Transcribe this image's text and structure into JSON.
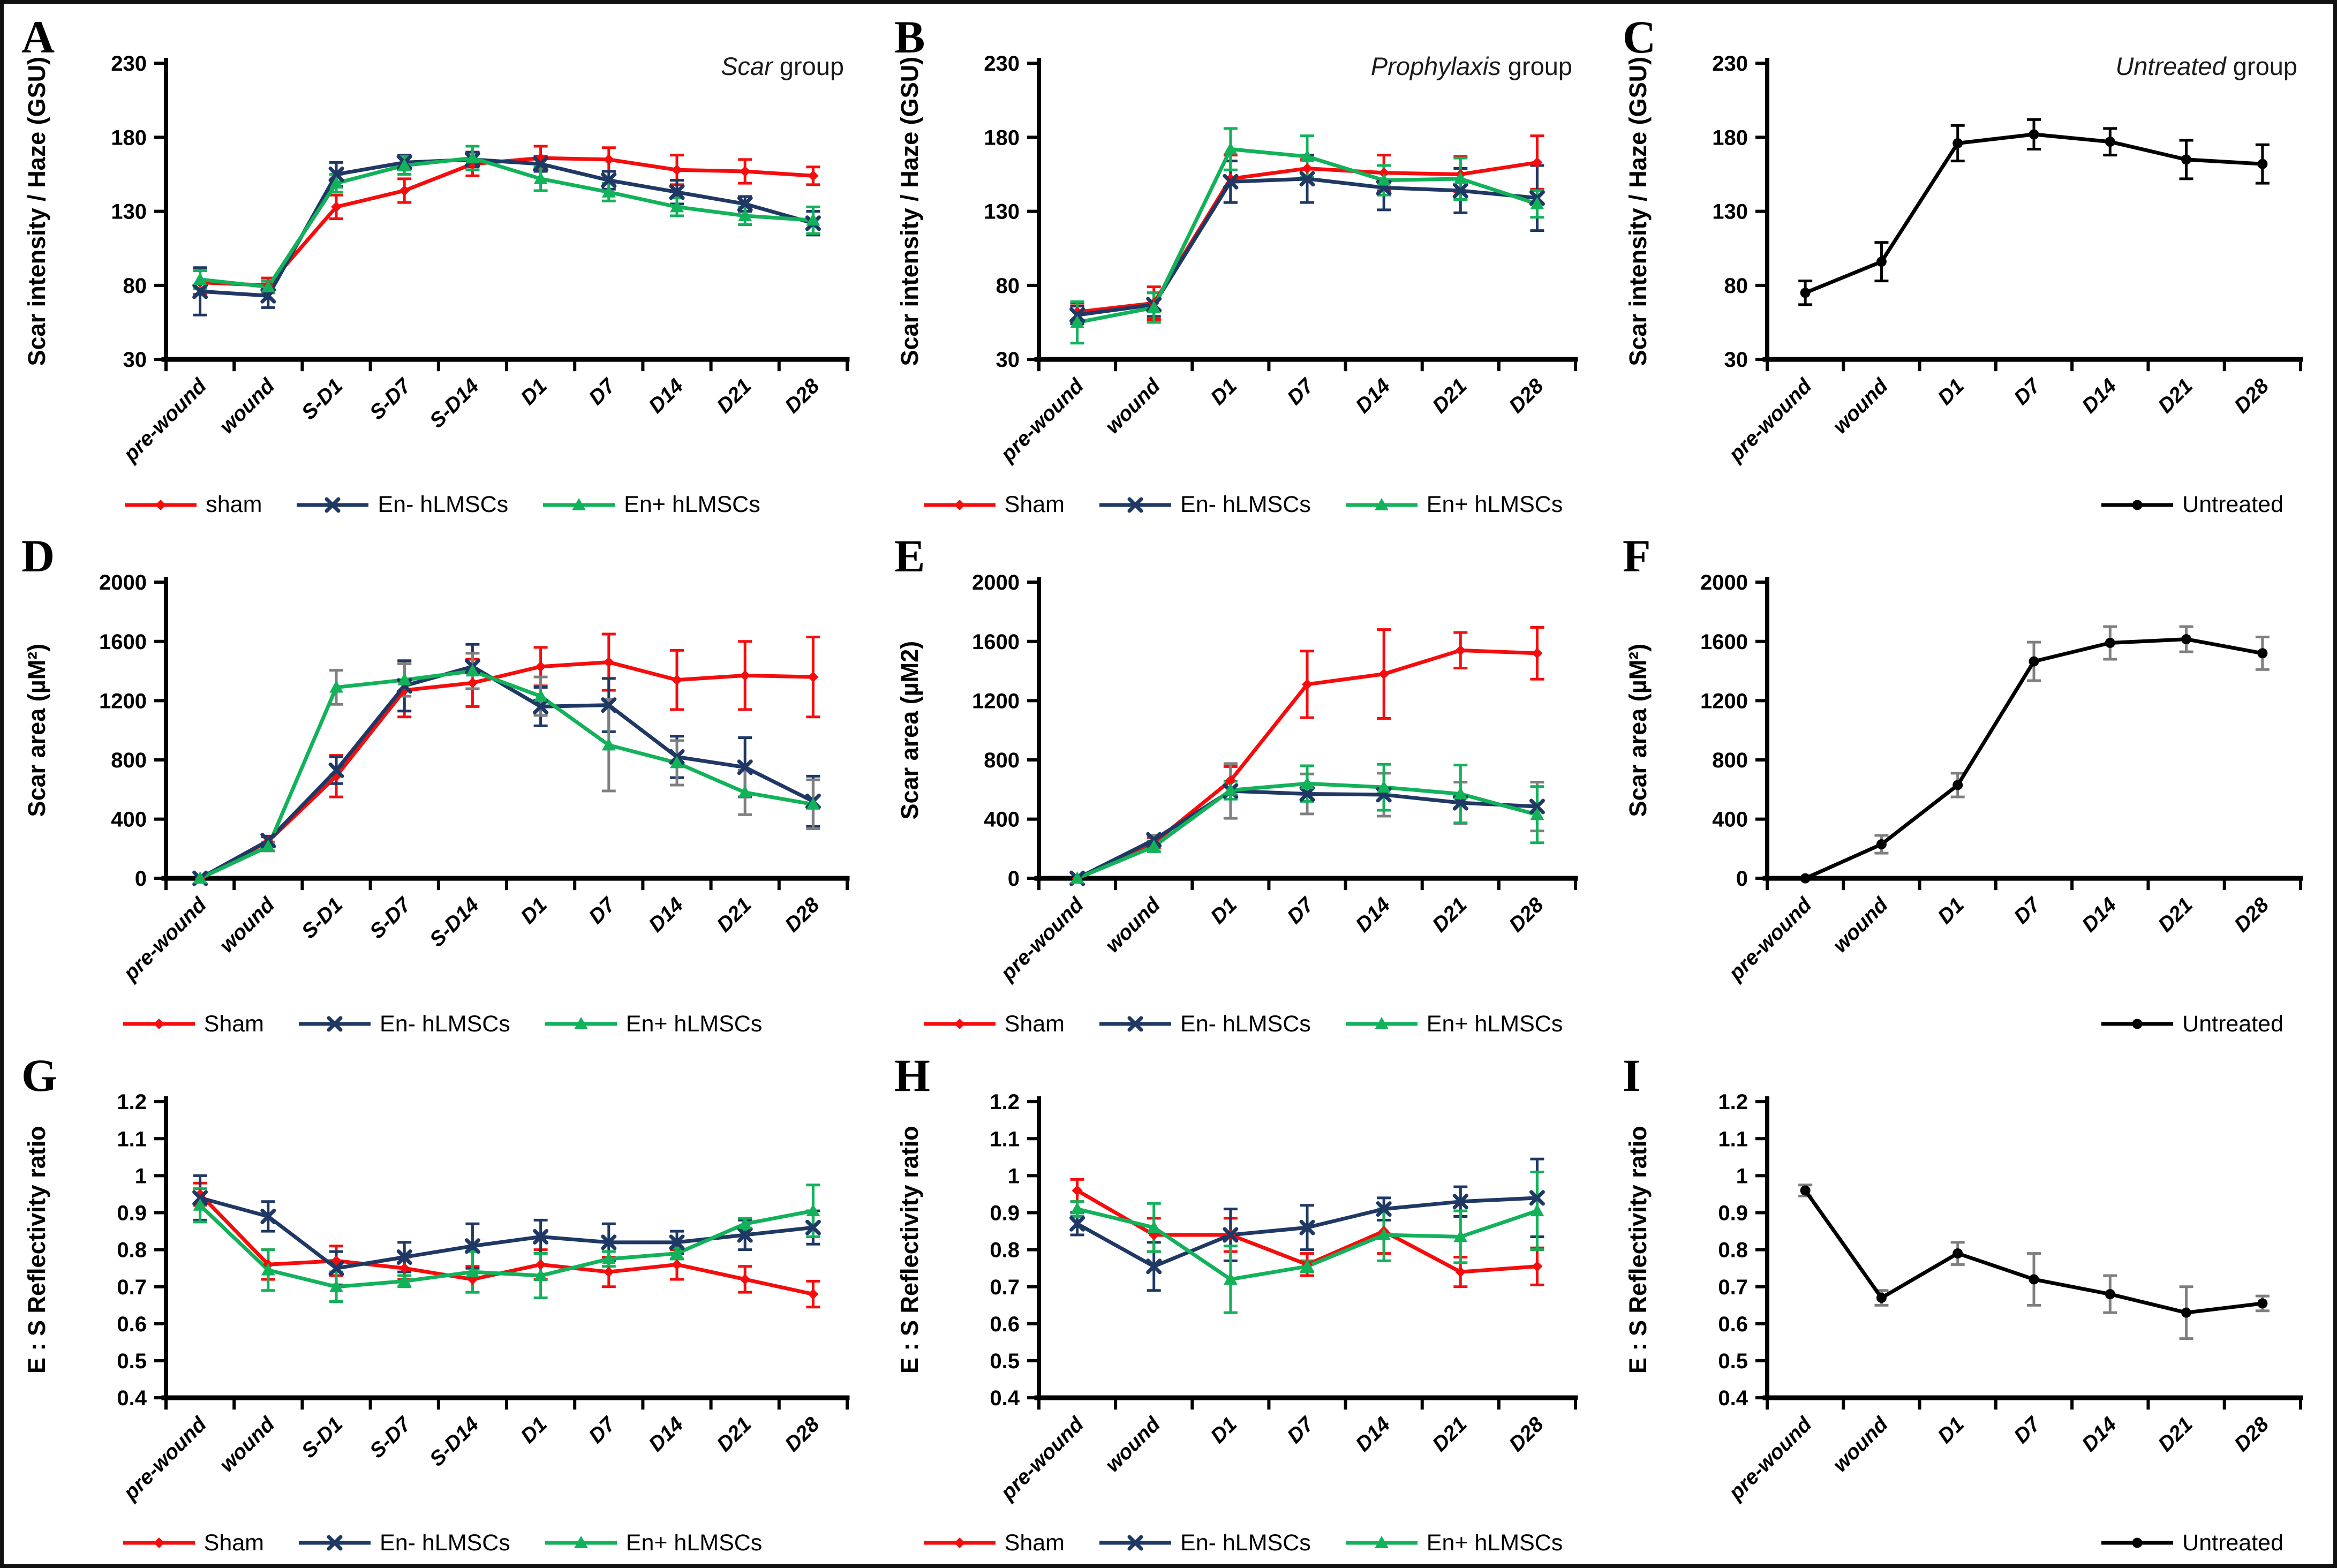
{
  "figure": {
    "background": "#ffffff",
    "border_color": "#111111"
  },
  "series_colors": {
    "sham": "#f50d0d",
    "en_minus_hlmscs": "#1f3864",
    "en_plus_hlmscs": "#12b25a",
    "untreated": "#000000",
    "gray_error": "#7f7f7f"
  },
  "chart_data": [
    {
      "type": "line",
      "letter": "A",
      "title_italic": "Scar",
      "title_rest": " group",
      "ylabel": "Scar intensity / Haze (GSU)",
      "ylim": [
        30,
        230
      ],
      "yticks": [
        30,
        80,
        130,
        180,
        230
      ],
      "ytick_labels": [
        "30",
        "80",
        "130",
        "180",
        "230"
      ],
      "categories": [
        "pre-wound",
        "wound",
        "S-D1",
        "S-D7",
        "S-D14",
        "D1",
        "D7",
        "D14",
        "D21",
        "D28"
      ],
      "legend_align": "center",
      "series": [
        {
          "name": "sham",
          "color_key": "sham",
          "marker": "diamond",
          "values": [
            82,
            80,
            133,
            144,
            162,
            166,
            165,
            158,
            157,
            154
          ],
          "errors": [
            8,
            5,
            8,
            8,
            8,
            8,
            8,
            10,
            8,
            6
          ]
        },
        {
          "name": "En- hLMSCs",
          "color_key": "en_minus_hlmscs",
          "marker": "x",
          "values": [
            76,
            73,
            155,
            163,
            165,
            162,
            151,
            143,
            135,
            122
          ],
          "errors": [
            16,
            8,
            8,
            5,
            5,
            5,
            6,
            8,
            5,
            8
          ]
        },
        {
          "name": "En+ hLMSCs",
          "color_key": "en_plus_hlmscs",
          "marker": "triangle",
          "values": [
            84,
            79,
            149,
            161,
            166,
            152,
            143,
            133,
            127,
            124
          ],
          "errors": [
            6,
            4,
            6,
            6,
            8,
            8,
            6,
            6,
            6,
            9
          ]
        }
      ]
    },
    {
      "type": "line",
      "letter": "B",
      "title_italic": "Prophylaxis",
      "title_rest": " group",
      "ylabel": "Scar intensity / Haze (GSU)",
      "ylim": [
        30,
        230
      ],
      "yticks": [
        30,
        80,
        130,
        180,
        230
      ],
      "ytick_labels": [
        "30",
        "80",
        "130",
        "180",
        "230"
      ],
      "categories": [
        "pre-wound",
        "wound",
        "D1",
        "D7",
        "D14",
        "D21",
        "D28"
      ],
      "legend_align": "center",
      "series": [
        {
          "name": "Sham",
          "color_key": "sham",
          "marker": "diamond",
          "values": [
            62,
            68,
            152,
            159,
            156,
            155,
            163
          ],
          "errors": [
            6,
            11,
            16,
            6,
            12,
            12,
            18
          ]
        },
        {
          "name": "En- hLMSCs",
          "color_key": "en_minus_hlmscs",
          "marker": "x",
          "values": [
            60,
            67,
            150,
            152,
            146,
            144,
            139
          ],
          "errors": [
            6,
            8,
            14,
            16,
            15,
            15,
            22
          ]
        },
        {
          "name": "En+ hLMSCs",
          "color_key": "en_plus_hlmscs",
          "marker": "triangle",
          "values": [
            55,
            65,
            172,
            167,
            151,
            152,
            135
          ],
          "errors": [
            14,
            10,
            14,
            14,
            10,
            14,
            9
          ]
        }
      ]
    },
    {
      "type": "line",
      "letter": "C",
      "title_italic": "Untreated",
      "title_rest": " group",
      "ylabel": "Scar intensity / Haze (GSU)",
      "ylim": [
        30,
        230
      ],
      "yticks": [
        30,
        80,
        130,
        180,
        230
      ],
      "ytick_labels": [
        "30",
        "80",
        "130",
        "180",
        "230"
      ],
      "categories": [
        "pre-wound",
        "wound",
        "D1",
        "D7",
        "D14",
        "D21",
        "D28"
      ],
      "legend_align": "right",
      "series": [
        {
          "name": "Untreated",
          "color_key": "untreated",
          "marker": "circle",
          "values": [
            75,
            96,
            176,
            182,
            177,
            165,
            162
          ],
          "errors": [
            8,
            13,
            12,
            10,
            9,
            13,
            13
          ]
        }
      ]
    },
    {
      "type": "line",
      "letter": "D",
      "title_italic": "",
      "title_rest": "",
      "ylabel": "Scar area (µM²)",
      "ylim": [
        0,
        2000
      ],
      "yticks": [
        0,
        400,
        800,
        1200,
        1600,
        2000
      ],
      "ytick_labels": [
        "0",
        "400",
        "800",
        "1200",
        "1600",
        "2000"
      ],
      "categories": [
        "pre-wound",
        "wound",
        "S-D1",
        "S-D7",
        "S-D14",
        "D1",
        "D7",
        "D14",
        "D21",
        "D28"
      ],
      "legend_align": "center",
      "series": [
        {
          "name": "Sham",
          "color_key": "sham",
          "marker": "diamond",
          "values": [
            0,
            250,
            690,
            1270,
            1320,
            1430,
            1460,
            1340,
            1370,
            1360
          ],
          "errors": [
            0,
            30,
            140,
            180,
            160,
            130,
            190,
            200,
            230,
            270
          ]
        },
        {
          "name": "En- hLMSCs",
          "color_key": "en_minus_hlmscs",
          "marker": "x",
          "values": [
            0,
            255,
            730,
            1300,
            1430,
            1160,
            1170,
            820,
            750,
            520
          ],
          "errors": [
            0,
            30,
            90,
            170,
            150,
            130,
            180,
            140,
            200,
            170
          ]
        },
        {
          "name": "En+ hLMSCs",
          "color_key": "en_plus_hlmscs",
          "marker": "triangle",
          "err_color_key": "gray_error",
          "values": [
            0,
            215,
            1290,
            1340,
            1400,
            1230,
            900,
            780,
            580,
            500
          ],
          "errors": [
            0,
            30,
            115,
            110,
            120,
            130,
            310,
            150,
            150,
            165
          ]
        }
      ]
    },
    {
      "type": "line",
      "letter": "E",
      "title_italic": "",
      "title_rest": "",
      "ylabel": "Scar area (µM2)",
      "ylim": [
        0,
        2000
      ],
      "yticks": [
        0,
        400,
        800,
        1200,
        1600,
        2000
      ],
      "ytick_labels": [
        "0",
        "400",
        "800",
        "1200",
        "1600",
        "2000"
      ],
      "categories": [
        "pre-wound",
        "wound",
        "D1",
        "D7",
        "D14",
        "D21",
        "D28"
      ],
      "legend_align": "center",
      "series": [
        {
          "name": "Sham",
          "color_key": "sham",
          "marker": "diamond",
          "values": [
            0,
            240,
            660,
            1310,
            1380,
            1540,
            1520
          ],
          "errors": [
            0,
            35,
            95,
            225,
            300,
            120,
            175
          ]
        },
        {
          "name": "En- hLMSCs",
          "color_key": "en_minus_hlmscs",
          "marker": "x",
          "err_color_key": "gray_error",
          "values": [
            0,
            260,
            590,
            570,
            565,
            510,
            485
          ],
          "errors": [
            0,
            30,
            185,
            135,
            145,
            140,
            165
          ]
        },
        {
          "name": "En+ hLMSCs",
          "color_key": "en_plus_hlmscs",
          "marker": "triangle",
          "values": [
            0,
            215,
            595,
            640,
            615,
            570,
            430
          ],
          "errors": [
            0,
            35,
            60,
            120,
            155,
            195,
            190
          ]
        }
      ]
    },
    {
      "type": "line",
      "letter": "F",
      "title_italic": "",
      "title_rest": "",
      "ylabel": "Scar area (µM²)",
      "ylim": [
        0,
        2000
      ],
      "yticks": [
        0,
        400,
        800,
        1200,
        1600,
        2000
      ],
      "ytick_labels": [
        "0",
        "400",
        "800",
        "1200",
        "1600",
        "2000"
      ],
      "categories": [
        "pre-wound",
        "wound",
        "D1",
        "D7",
        "D14",
        "D21",
        "D28"
      ],
      "legend_align": "right",
      "series": [
        {
          "name": "Untreated",
          "color_key": "untreated",
          "marker": "circle",
          "err_color_key": "gray_error",
          "values": [
            0,
            230,
            630,
            1465,
            1590,
            1615,
            1520
          ],
          "errors": [
            0,
            60,
            80,
            130,
            110,
            85,
            110
          ]
        }
      ]
    },
    {
      "type": "line",
      "letter": "G",
      "title_italic": "",
      "title_rest": "",
      "ylabel": "E : S Reflectivity ratio",
      "ylim": [
        0.4,
        1.2
      ],
      "yticks": [
        0.4,
        0.5,
        0.6,
        0.7,
        0.8,
        0.9,
        1.0,
        1.1,
        1.2
      ],
      "ytick_labels": [
        "0.4",
        "0.5",
        "0.6",
        "0.7",
        "0.8",
        "0.9",
        "1",
        "1.1",
        "1.2"
      ],
      "categories": [
        "pre-wound",
        "wound",
        "S-D1",
        "S-D7",
        "S-D14",
        "D1",
        "D7",
        "D14",
        "D21",
        "D28"
      ],
      "legend_align": "center",
      "series": [
        {
          "name": "Sham",
          "color_key": "sham",
          "marker": "diamond",
          "values": [
            0.95,
            0.76,
            0.77,
            0.75,
            0.72,
            0.76,
            0.74,
            0.76,
            0.72,
            0.68
          ],
          "errors": [
            0.03,
            0.04,
            0.04,
            0.03,
            0.035,
            0.04,
            0.04,
            0.04,
            0.035,
            0.035
          ]
        },
        {
          "name": "En- hLMSCs",
          "color_key": "en_minus_hlmscs",
          "marker": "x",
          "values": [
            0.94,
            0.89,
            0.75,
            0.78,
            0.81,
            0.835,
            0.82,
            0.82,
            0.84,
            0.86
          ],
          "errors": [
            0.06,
            0.04,
            0.045,
            0.04,
            0.06,
            0.045,
            0.05,
            0.03,
            0.04,
            0.045
          ]
        },
        {
          "name": "En+ hLMSCs",
          "color_key": "en_plus_hlmscs",
          "marker": "triangle",
          "values": [
            0.92,
            0.745,
            0.7,
            0.715,
            0.74,
            0.73,
            0.775,
            0.79,
            0.87,
            0.905
          ],
          "errors": [
            0.045,
            0.055,
            0.04,
            0.015,
            0.055,
            0.06,
            0.02,
            0.015,
            0.015,
            0.07
          ]
        }
      ]
    },
    {
      "type": "line",
      "letter": "H",
      "title_italic": "",
      "title_rest": "",
      "ylabel": "E : S Reflectivity ratio",
      "ylim": [
        0.4,
        1.2
      ],
      "yticks": [
        0.4,
        0.5,
        0.6,
        0.7,
        0.8,
        0.9,
        1.0,
        1.1,
        1.2
      ],
      "ytick_labels": [
        "0.4",
        "0.5",
        "0.6",
        "0.7",
        "0.8",
        "0.9",
        "1",
        "1.1",
        "1.2"
      ],
      "categories": [
        "pre-wound",
        "wound",
        "D1",
        "D7",
        "D14",
        "D21",
        "D28"
      ],
      "legend_align": "center",
      "series": [
        {
          "name": "Sham",
          "color_key": "sham",
          "marker": "diamond",
          "values": [
            0.96,
            0.84,
            0.84,
            0.76,
            0.85,
            0.74,
            0.755
          ],
          "errors": [
            0.03,
            0.045,
            0.045,
            0.03,
            0.06,
            0.04,
            0.05
          ]
        },
        {
          "name": "En- hLMSCs",
          "color_key": "en_minus_hlmscs",
          "marker": "x",
          "values": [
            0.87,
            0.755,
            0.84,
            0.86,
            0.91,
            0.93,
            0.94
          ],
          "errors": [
            0.03,
            0.065,
            0.07,
            0.06,
            0.03,
            0.04,
            0.105
          ]
        },
        {
          "name": "En+ hLMSCs",
          "color_key": "en_plus_hlmscs",
          "marker": "triangle",
          "values": [
            0.91,
            0.86,
            0.72,
            0.755,
            0.84,
            0.835,
            0.905
          ],
          "errors": [
            0.02,
            0.065,
            0.09,
            0.015,
            0.07,
            0.07,
            0.105
          ]
        }
      ]
    },
    {
      "type": "line",
      "letter": "I",
      "title_italic": "",
      "title_rest": "",
      "ylabel": "E : S Reflectivity ratio",
      "ylim": [
        0.4,
        1.2
      ],
      "yticks": [
        0.4,
        0.5,
        0.6,
        0.7,
        0.8,
        0.9,
        1.0,
        1.1,
        1.2
      ],
      "ytick_labels": [
        "0.4",
        "0.5",
        "0.6",
        "0.7",
        "0.8",
        "0.9",
        "1",
        "1.1",
        "1.2"
      ],
      "categories": [
        "pre-wound",
        "wound",
        "D1",
        "D7",
        "D14",
        "D21",
        "D28"
      ],
      "legend_align": "right",
      "series": [
        {
          "name": "Untreated",
          "color_key": "untreated",
          "marker": "circle",
          "err_color_key": "gray_error",
          "values": [
            0.96,
            0.67,
            0.79,
            0.72,
            0.68,
            0.63,
            0.655
          ],
          "errors": [
            0.015,
            0.02,
            0.03,
            0.07,
            0.05,
            0.07,
            0.02
          ]
        }
      ]
    }
  ]
}
